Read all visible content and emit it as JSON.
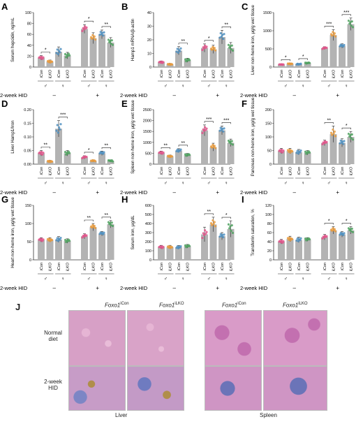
{
  "shared": {
    "groups": [
      "iCon",
      "iLKO",
      "iCon",
      "iLKO",
      "iCon",
      "iLKO",
      "iCon",
      "iLKO"
    ],
    "sexes": [
      "♂",
      "♀",
      "♂",
      "♀"
    ],
    "hid_label": "2-week HID",
    "hid_minus": "–",
    "hid_plus": "+",
    "colors": {
      "iCon_m": "#e0538a",
      "iLKO_m": "#e89a3c",
      "iCon_f": "#4f8fc0",
      "iLKO_f": "#4fa15f",
      "bar": "#b3b3b3"
    }
  },
  "chart_data": [
    {
      "type": "bar",
      "letter": "A",
      "title": "",
      "ylabel": "Serum hepcidin, ng/mL",
      "ylim": [
        0,
        100
      ],
      "yticks": [
        0,
        20,
        40,
        60,
        80,
        100
      ],
      "values": [
        17,
        10,
        28,
        21,
        70,
        53,
        60,
        45
      ],
      "sd": [
        4,
        3,
        9,
        6,
        8,
        10,
        8,
        9
      ],
      "significance": [
        {
          "a": 0,
          "b": 1,
          "label": "*"
        },
        {
          "a": 4,
          "b": 5,
          "label": "*"
        },
        {
          "a": 6,
          "b": 7,
          "label": "**"
        }
      ]
    },
    {
      "type": "bar",
      "letter": "B",
      "title": "",
      "ylabel": "Hamp1 mRNA/β-actin",
      "ylim": [
        0,
        40
      ],
      "yticks": [
        0,
        10,
        20,
        30,
        40
      ],
      "values": [
        3.5,
        2,
        12,
        5,
        14,
        13,
        22,
        14
      ],
      "sd": [
        1,
        0.7,
        3,
        1.5,
        3,
        3,
        5,
        4
      ],
      "significance": [
        {
          "a": 2,
          "b": 3,
          "label": "**"
        },
        {
          "a": 4,
          "b": 5,
          "label": "*"
        },
        {
          "a": 6,
          "b": 7,
          "label": "**"
        }
      ]
    },
    {
      "type": "bar",
      "letter": "C",
      "title": "",
      "ylabel": "Liver non-heme iron, μg/g wet tissue",
      "ylim": [
        0,
        1500
      ],
      "yticks": [
        0,
        500,
        1000,
        1500
      ],
      "values": [
        70,
        90,
        80,
        110,
        520,
        880,
        580,
        1180
      ],
      "sd": [
        15,
        20,
        20,
        25,
        40,
        150,
        60,
        170
      ],
      "significance": [
        {
          "a": 0,
          "b": 1,
          "label": "*"
        },
        {
          "a": 2,
          "b": 3,
          "label": "*"
        },
        {
          "a": 4,
          "b": 5,
          "label": "***"
        },
        {
          "a": 6,
          "b": 7,
          "label": "***"
        }
      ]
    },
    {
      "type": "bar",
      "letter": "D",
      "title": "",
      "ylabel": "Liver Hamp1/Iron",
      "ylim": [
        0,
        0.2
      ],
      "yticks": [
        0.0,
        0.05,
        0.1,
        0.15,
        0.2
      ],
      "values": [
        0.04,
        0.01,
        0.13,
        0.04,
        0.025,
        0.012,
        0.04,
        0.012
      ],
      "sd": [
        0.01,
        0.004,
        0.03,
        0.01,
        0.006,
        0.004,
        0.008,
        0.004
      ],
      "significance": [
        {
          "a": 0,
          "b": 1,
          "label": "**"
        },
        {
          "a": 2,
          "b": 3,
          "label": "***"
        },
        {
          "a": 4,
          "b": 5,
          "label": "*"
        },
        {
          "a": 6,
          "b": 7,
          "label": "**"
        }
      ]
    },
    {
      "type": "bar",
      "letter": "E",
      "title": "",
      "ylabel": "Spleen non-heme iron, μg/g wet tissue",
      "ylim": [
        0,
        2500
      ],
      "yticks": [
        0,
        500,
        1000,
        1500,
        2000,
        2500
      ],
      "values": [
        520,
        360,
        620,
        420,
        1550,
        780,
        1550,
        980
      ],
      "sd": [
        80,
        60,
        90,
        70,
        250,
        180,
        200,
        170
      ],
      "significance": [
        {
          "a": 0,
          "b": 1,
          "label": "**"
        },
        {
          "a": 2,
          "b": 3,
          "label": "**"
        },
        {
          "a": 4,
          "b": 5,
          "label": "***"
        },
        {
          "a": 6,
          "b": 7,
          "label": "***"
        }
      ]
    },
    {
      "type": "bar",
      "letter": "F",
      "title": "",
      "ylabel": "Pancreas non-heme iron, μg/g wet tissue",
      "ylim": [
        0,
        200
      ],
      "yticks": [
        0,
        50,
        100,
        150,
        200
      ],
      "values": [
        48,
        48,
        44,
        42,
        78,
        110,
        78,
        100
      ],
      "sd": [
        10,
        10,
        10,
        8,
        10,
        30,
        15,
        20
      ],
      "significance": [
        {
          "a": 4,
          "b": 5,
          "label": "**"
        },
        {
          "a": 6,
          "b": 7,
          "label": "*"
        }
      ]
    },
    {
      "type": "bar",
      "letter": "G",
      "title": "",
      "ylabel": "Heart non-heme iron, μg/g wet tissue",
      "ylim": [
        0,
        150
      ],
      "yticks": [
        0,
        50,
        100,
        150
      ],
      "values": [
        55,
        55,
        56,
        52,
        65,
        90,
        72,
        98
      ],
      "sd": [
        6,
        6,
        8,
        6,
        7,
        10,
        6,
        10
      ],
      "significance": [
        {
          "a": 4,
          "b": 5,
          "label": "**"
        },
        {
          "a": 6,
          "b": 7,
          "label": "**"
        }
      ]
    },
    {
      "type": "bar",
      "letter": "H",
      "title": "",
      "ylabel": "Serum iron, μg/dL",
      "ylim": [
        0,
        600
      ],
      "yticks": [
        0,
        100,
        200,
        300,
        400,
        500,
        600
      ],
      "values": [
        140,
        140,
        138,
        150,
        280,
        390,
        260,
        340
      ],
      "sd": [
        20,
        20,
        20,
        20,
        80,
        80,
        40,
        90
      ],
      "significance": [
        {
          "a": 4,
          "b": 5,
          "label": "**"
        },
        {
          "a": 6,
          "b": 7,
          "label": "*"
        }
      ]
    },
    {
      "type": "bar",
      "letter": "I",
      "title": "",
      "ylabel": "Transferrin saturation, %",
      "ylim": [
        0,
        120
      ],
      "yticks": [
        0,
        20,
        40,
        60,
        80,
        100,
        120
      ],
      "values": [
        40,
        46,
        44,
        45,
        50,
        65,
        56,
        65
      ],
      "sd": [
        5,
        6,
        6,
        4,
        6,
        8,
        6,
        8
      ],
      "significance": [
        {
          "a": 4,
          "b": 5,
          "label": "*"
        },
        {
          "a": 6,
          "b": 7,
          "label": "*"
        }
      ]
    }
  ],
  "panel_j": {
    "letter": "J",
    "col_gene": "Foxo1",
    "col_icon_sup": "iCon",
    "col_ilko_sup": "iLKO",
    "row_normal": "Normal diet",
    "row_hid": "2-week HID",
    "liver": "Liver",
    "spleen": "Spleen"
  }
}
